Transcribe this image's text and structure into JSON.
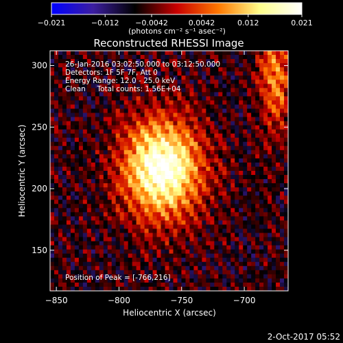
{
  "chart_data": {
    "type": "heatmap",
    "title": "Reconstructed RHESSI Image",
    "xlabel": "Heliocentric X (arcsec)",
    "ylabel": "Heliocentric Y (arcsec)",
    "xlim": [
      -855,
      -665
    ],
    "ylim": [
      117,
      312
    ],
    "x_ticks": [
      -850,
      -800,
      -750,
      -700
    ],
    "x_tick_labels": [
      "−850",
      "−800",
      "−750",
      "−700"
    ],
    "y_ticks": [
      150,
      200,
      250,
      300
    ],
    "y_tick_labels": [
      "150",
      "200",
      "250",
      "300"
    ],
    "colorbar": {
      "range": [
        -0.021,
        0.021
      ],
      "ticks": [
        -0.021,
        -0.012,
        -0.0042,
        0.0042,
        0.012,
        0.021
      ],
      "tick_labels": [
        "−0.021",
        "−0.012",
        "−0.0042",
        "0.0042",
        "0.012",
        "0.021"
      ],
      "label": "(photons cm⁻² s⁻¹ asec⁻²)",
      "colors": [
        "#0000ff",
        "#3c1ea0",
        "#000000",
        "#c80000",
        "#ff7800",
        "#ffff8c",
        "#ffffff"
      ]
    },
    "source_peak": {
      "x": -766,
      "y": 216,
      "sigma_x": 22,
      "sigma_y": 28
    },
    "secondary_source": {
      "x": -675,
      "y": 290
    }
  },
  "info_lines": [
    "26-Jan-2016 03:02:50.000 to 03:12:50.000",
    "Detectors: 1F 5F 7F, Att 0",
    "Energy Range: 12.0 - 25.0 keV",
    "Clean     Total counts: 1.56E+04"
  ],
  "peak_text": "Position of Peak = [-766,216]",
  "footer_date": "2-Oct-2017 05:52"
}
